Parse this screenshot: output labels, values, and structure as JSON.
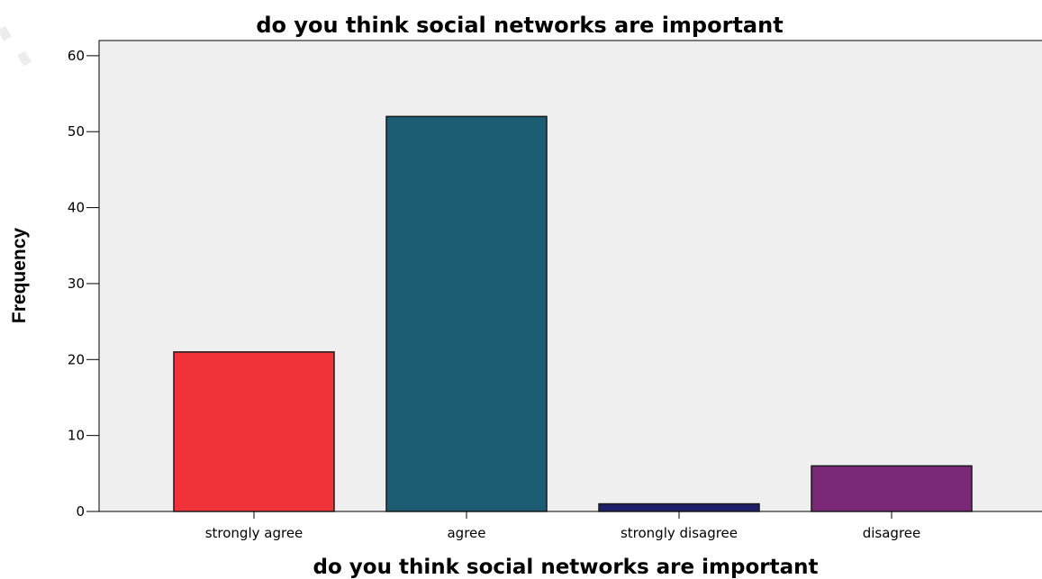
{
  "chart_data": {
    "type": "bar",
    "title": "do you think social networks are important",
    "xlabel": "do you think social networks are important",
    "ylabel": "Frequency",
    "categories": [
      "strongly agree",
      "agree",
      "strongly disagree",
      "disagree"
    ],
    "values": [
      21,
      52,
      1,
      6
    ],
    "colors": [
      "#ef3338",
      "#1d5d73",
      "#1f1f6b",
      "#7b2878"
    ],
    "ylim": [
      0,
      62
    ],
    "yticks": [
      0,
      10,
      20,
      30,
      40,
      50,
      60
    ],
    "grid": false,
    "legend": "none",
    "plot_background": "#efefef"
  }
}
